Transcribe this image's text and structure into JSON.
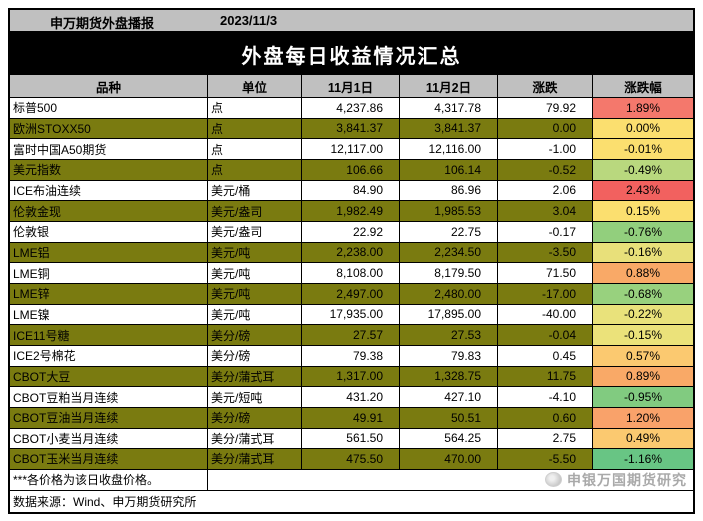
{
  "report": {
    "source_label": "申万期货外盘播报",
    "date": "2023/11/3",
    "title": "外盘每日收益情况汇总"
  },
  "table": {
    "columns": [
      "品种",
      "单位",
      "11月1日",
      "11月2日",
      "涨跌",
      "涨跌幅"
    ],
    "header_bg": "#C0C0C0",
    "olive_color": "#7A7B10",
    "white_color": "#FFFFFF",
    "rows": [
      {
        "name": "标普500",
        "unit": "点",
        "d1": "4,237.86",
        "d2": "4,317.78",
        "chg": "79.92",
        "pct": "1.89%",
        "band": "white",
        "pct_color": "#F4786C"
      },
      {
        "name": "欧洲STOXX50",
        "unit": "点",
        "d1": "3,841.37",
        "d2": "3,841.37",
        "chg": "0.00",
        "pct": "0.00%",
        "band": "olive",
        "pct_color": "#FBDF6F"
      },
      {
        "name": "富时中国A50期货",
        "unit": "点",
        "d1": "12,117.00",
        "d2": "12,116.00",
        "chg": "-1.00",
        "pct": "-0.01%",
        "band": "white",
        "pct_color": "#FBDF6F"
      },
      {
        "name": "美元指数",
        "unit": "点",
        "d1": "106.66",
        "d2": "106.14",
        "chg": "-0.52",
        "pct": "-0.49%",
        "band": "olive",
        "pct_color": "#B9D87E"
      },
      {
        "name": "ICE布油连续",
        "unit": "美元/桶",
        "d1": "84.90",
        "d2": "86.96",
        "chg": "2.06",
        "pct": "2.43%",
        "band": "white",
        "pct_color": "#F2615F"
      },
      {
        "name": "伦敦金现",
        "unit": "美元/盎司",
        "d1": "1,982.49",
        "d2": "1,985.53",
        "chg": "3.04",
        "pct": "0.15%",
        "band": "olive",
        "pct_color": "#FBDF6F"
      },
      {
        "name": "伦敦银",
        "unit": "美元/盎司",
        "d1": "22.92",
        "d2": "22.75",
        "chg": "-0.17",
        "pct": "-0.76%",
        "band": "white",
        "pct_color": "#92CF7D"
      },
      {
        "name": "LME铝",
        "unit": "美元/吨",
        "d1": "2,238.00",
        "d2": "2,234.50",
        "chg": "-3.50",
        "pct": "-0.16%",
        "band": "olive",
        "pct_color": "#E8E07A"
      },
      {
        "name": "LME铜",
        "unit": "美元/吨",
        "d1": "8,108.00",
        "d2": "8,179.50",
        "chg": "71.50",
        "pct": "0.88%",
        "band": "white",
        "pct_color": "#F9A967"
      },
      {
        "name": "LME锌",
        "unit": "美元/吨",
        "d1": "2,497.00",
        "d2": "2,480.00",
        "chg": "-17.00",
        "pct": "-0.68%",
        "band": "olive",
        "pct_color": "#98D17E"
      },
      {
        "name": "LME镍",
        "unit": "美元/吨",
        "d1": "17,935.00",
        "d2": "17,895.00",
        "chg": "-40.00",
        "pct": "-0.22%",
        "band": "white",
        "pct_color": "#E9E27B"
      },
      {
        "name": "ICE11号糖",
        "unit": "美分/磅",
        "d1": "27.57",
        "d2": "27.53",
        "chg": "-0.04",
        "pct": "-0.15%",
        "band": "olive",
        "pct_color": "#EBE27A"
      },
      {
        "name": "ICE2号棉花",
        "unit": "美分/磅",
        "d1": "79.38",
        "d2": "79.83",
        "chg": "0.45",
        "pct": "0.57%",
        "band": "white",
        "pct_color": "#FBC970"
      },
      {
        "name": "CBOT大豆",
        "unit": "美分/蒲式耳",
        "d1": "1,317.00",
        "d2": "1,328.75",
        "chg": "11.75",
        "pct": "0.89%",
        "band": "olive",
        "pct_color": "#F9A967"
      },
      {
        "name": "CBOT豆粕当月连续",
        "unit": "美元/短吨",
        "d1": "431.20",
        "d2": "427.10",
        "chg": "-4.10",
        "pct": "-0.95%",
        "band": "white",
        "pct_color": "#81CB80"
      },
      {
        "name": "CBOT豆油当月连续",
        "unit": "美分/磅",
        "d1": "49.91",
        "d2": "50.51",
        "chg": "0.60",
        "pct": "1.20%",
        "band": "olive",
        "pct_color": "#F9A26A"
      },
      {
        "name": "CBOT小麦当月连续",
        "unit": "美分/蒲式耳",
        "d1": "561.50",
        "d2": "564.25",
        "chg": "2.75",
        "pct": "0.49%",
        "band": "white",
        "pct_color": "#FBC970"
      },
      {
        "name": "CBOT玉米当月连续",
        "unit": "美分/蒲式耳",
        "d1": "475.50",
        "d2": "470.00",
        "chg": "-5.50",
        "pct": "-1.16%",
        "band": "olive",
        "pct_color": "#68C584"
      }
    ]
  },
  "footer": {
    "note": "***各价格为该日收盘价格。",
    "source": "数据来源：Wind、申万期货研究所",
    "watermark": "申银万国期货研究"
  }
}
